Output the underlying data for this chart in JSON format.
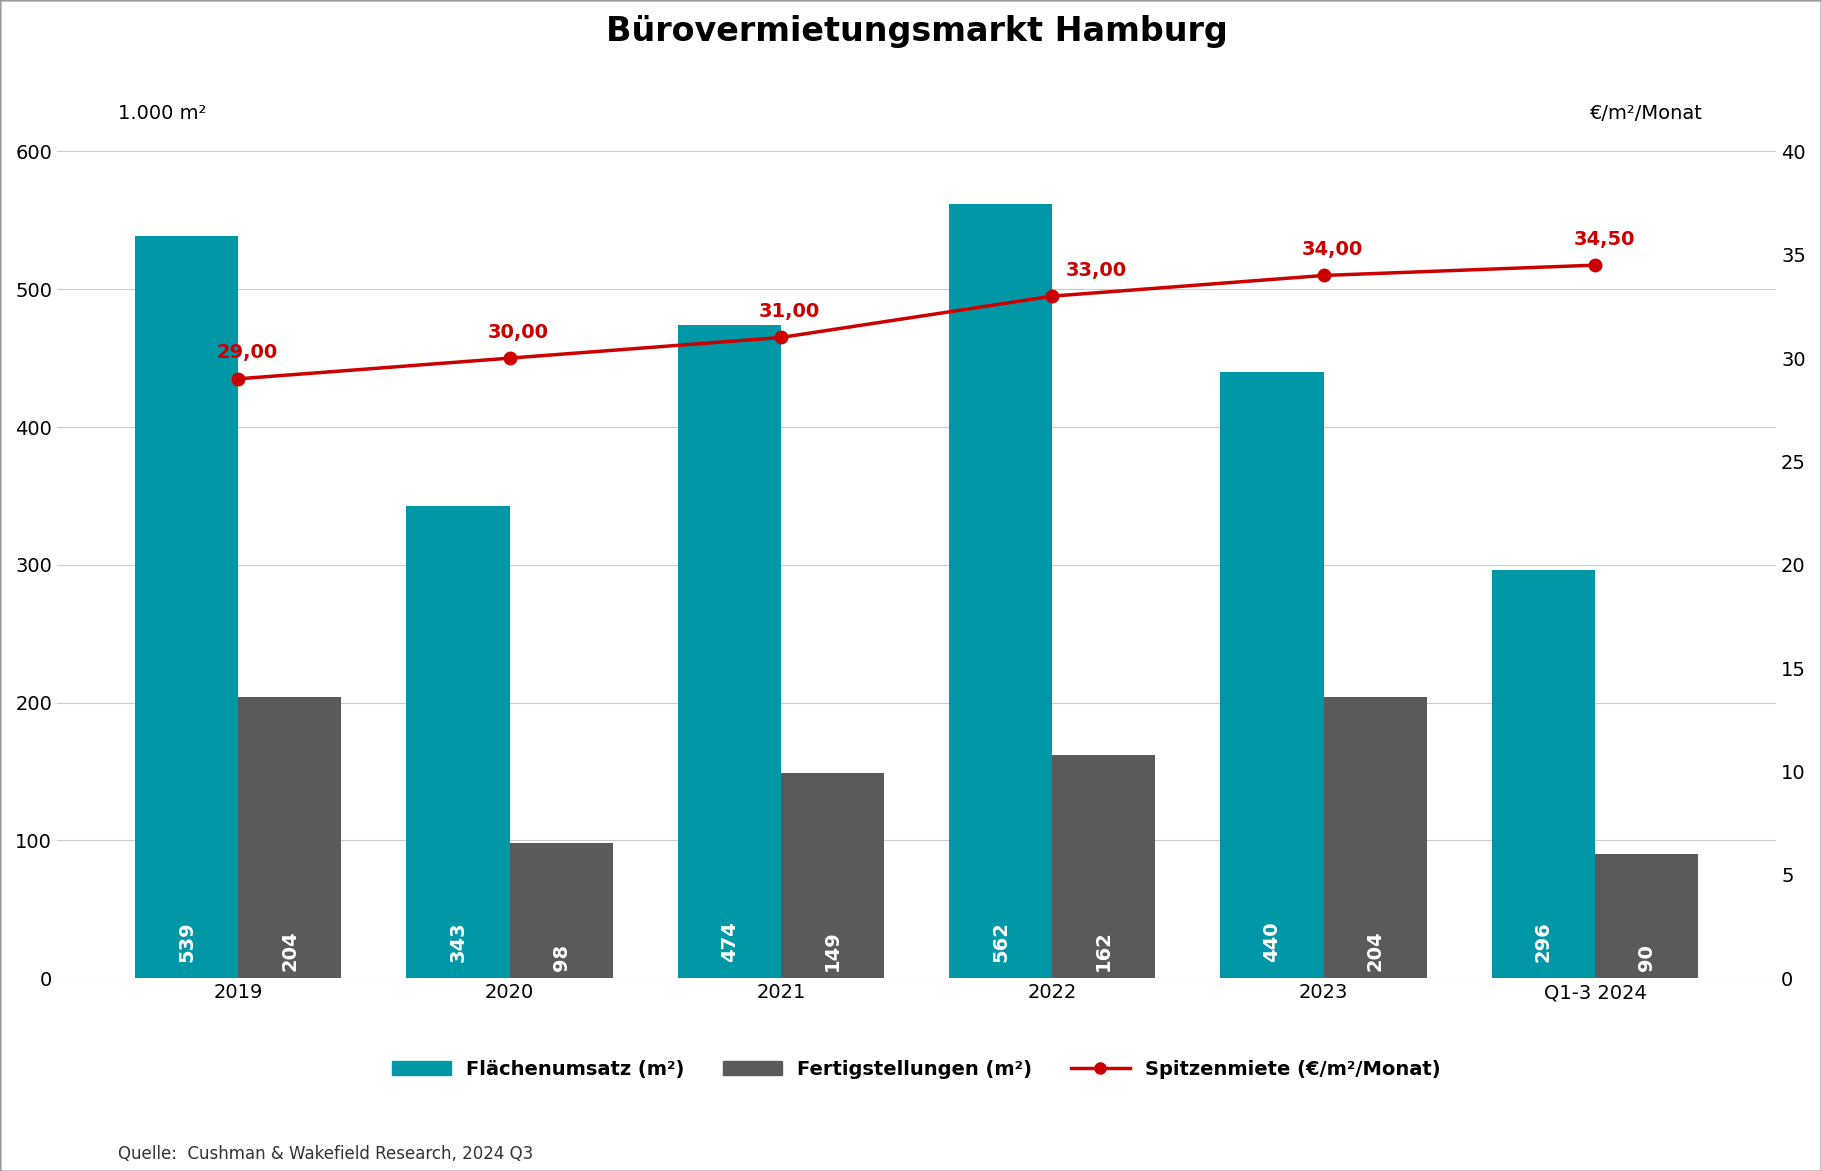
{
  "title": "Bürovermietungsmarkt Hamburg",
  "ylabel_left": "1.000 m²",
  "ylabel_right": "€/m²/Monat",
  "source": "Quelle:  Cushman & Wakefield Research, 2024 Q3",
  "categories": [
    "2019",
    "2020",
    "2021",
    "2022",
    "2023",
    "Q1-3 2024"
  ],
  "flaeche_values": [
    539,
    343,
    474,
    562,
    440,
    296
  ],
  "fertig_values": [
    204,
    98,
    149,
    162,
    204,
    90
  ],
  "spitzen_values": [
    29.0,
    30.0,
    31.0,
    33.0,
    34.0,
    34.5
  ],
  "flaeche_color": "#0097a7",
  "fertig_color": "#5a5a5a",
  "spitzen_color": "#cc0000",
  "background_color": "#ffffff",
  "bar_width": 0.38,
  "ylim_left": [
    0,
    660
  ],
  "ylim_right": [
    0,
    44
  ],
  "yticks_left": [
    0,
    100,
    200,
    300,
    400,
    500,
    600
  ],
  "yticks_right": [
    0,
    5,
    10,
    15,
    20,
    25,
    30,
    35,
    40
  ],
  "title_fontsize": 24,
  "label_fontsize": 14,
  "tick_fontsize": 14,
  "bar_label_fontsize": 14,
  "legend_fontsize": 14,
  "source_fontsize": 12,
  "spitzen_label_offsets_x": [
    -0.08,
    -0.08,
    -0.08,
    0.05,
    -0.08,
    -0.08
  ],
  "spitzen_label_offsets_y": [
    0.8,
    0.8,
    0.8,
    0.8,
    0.8,
    0.8
  ]
}
